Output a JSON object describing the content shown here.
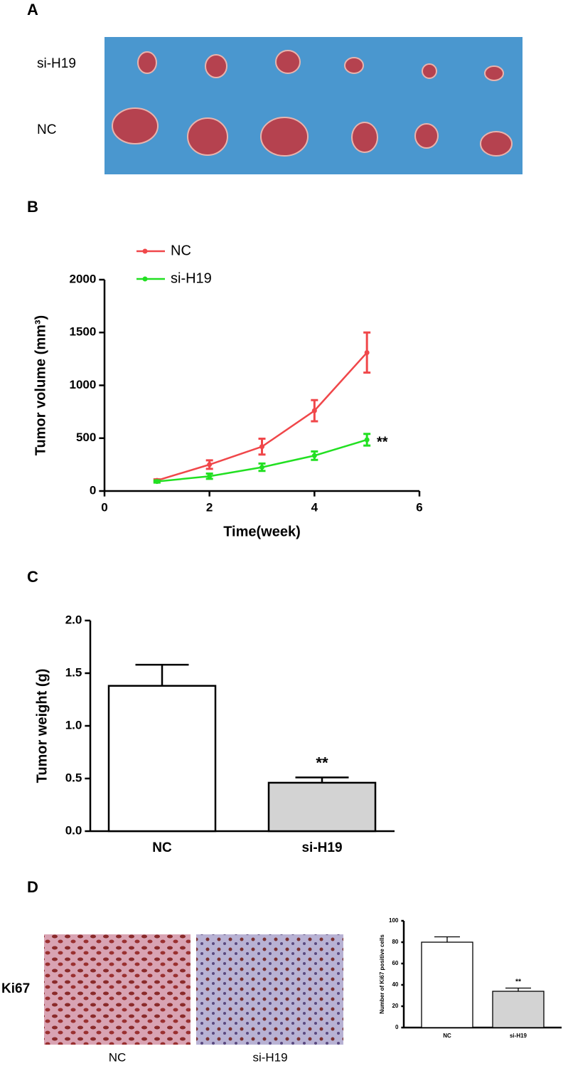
{
  "panel_labels": [
    "A",
    "B",
    "C",
    "D"
  ],
  "photo_a": {
    "rows": [
      "si-H19",
      "NC"
    ]
  },
  "photo_d": {
    "row_label": "Ki67",
    "columns": [
      "NC",
      "si-H19"
    ]
  },
  "chart_data": [
    {
      "type": "line",
      "ylabel": "Tumor volume (mm³)",
      "xlabel": "Time(week)",
      "x": [
        1,
        2,
        3,
        4,
        5
      ],
      "xlim": [
        0,
        6
      ],
      "xticks": [
        0,
        2,
        4,
        6
      ],
      "ylim": [
        0,
        2000
      ],
      "yticks": [
        0,
        500,
        1000,
        1500,
        2000
      ],
      "series": [
        {
          "name": "NC",
          "color": "#f0474a",
          "values": [
            100,
            250,
            420,
            760,
            1310
          ],
          "errors": [
            10,
            40,
            75,
            100,
            190
          ]
        },
        {
          "name": "si-H19",
          "color": "#22e022",
          "values": [
            90,
            140,
            225,
            335,
            485
          ],
          "errors": [
            10,
            25,
            35,
            40,
            55
          ]
        }
      ],
      "annotation": "**"
    },
    {
      "type": "bar",
      "ylabel": "Tumor weight (g)",
      "categories": [
        "NC",
        "si-H19"
      ],
      "values": [
        1.38,
        0.46
      ],
      "errors": [
        0.2,
        0.05
      ],
      "colors": [
        "#ffffff",
        "#d3d3d3"
      ],
      "ylim": [
        0,
        2.0
      ],
      "yticks": [
        {
          "value": 0,
          "label": "0.0"
        },
        {
          "value": 0.5,
          "label": "0.5"
        },
        {
          "value": 1,
          "label": "1.0"
        },
        {
          "value": 1.5,
          "label": "1.5"
        },
        {
          "value": 2,
          "label": "2.0"
        }
      ],
      "annotation": "**"
    },
    {
      "type": "bar",
      "ylabel": "Number of Ki67 positive cells",
      "categories": [
        "NC",
        "si-H19"
      ],
      "values": [
        80,
        34
      ],
      "errors": [
        5,
        3
      ],
      "colors": [
        "#ffffff",
        "#d3d3d3"
      ],
      "ylim": [
        0,
        100
      ],
      "yticks": [
        0,
        20,
        40,
        60,
        80,
        100
      ],
      "annotation": "**"
    }
  ]
}
